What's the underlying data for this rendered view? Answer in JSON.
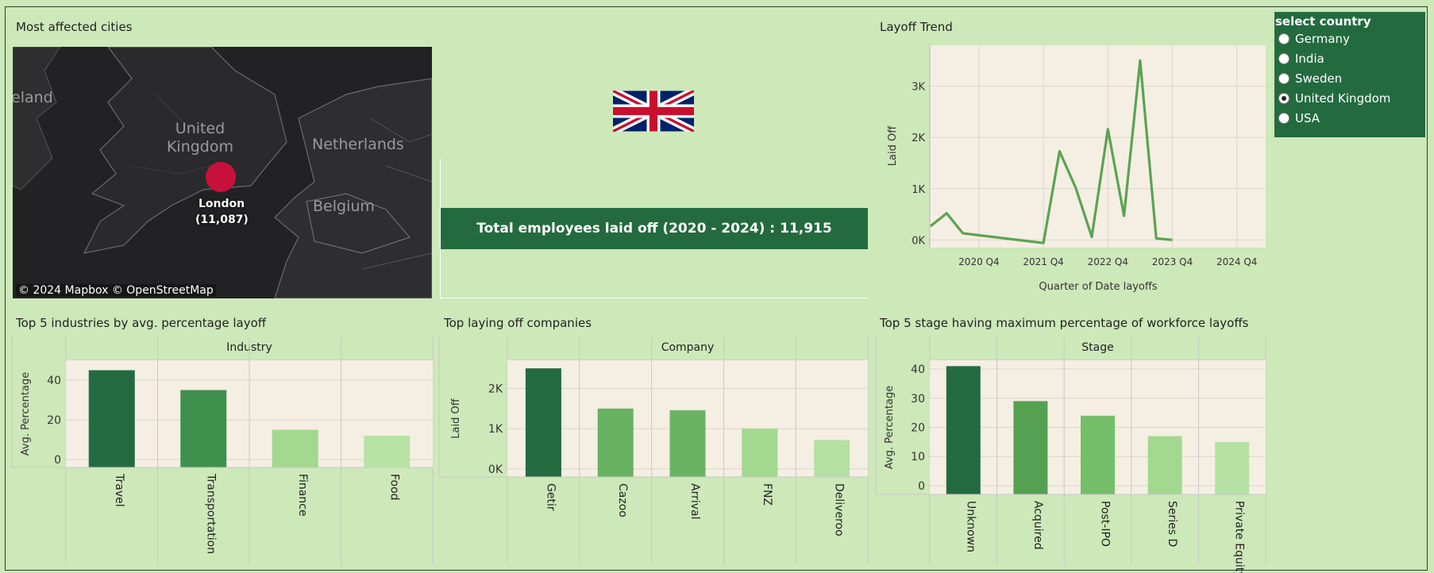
{
  "panels": {
    "map_title": "Most affected cities",
    "trend_title": "Layoff Trend",
    "industries_title": "Top 5 industries by avg. percentage layoff",
    "companies_title": "Top laying off companies",
    "stages_title": "Top 5 stage having maximum percentage of workforce layoffs"
  },
  "map": {
    "labels": {
      "ireland": "eland",
      "uk": "United Kingdom",
      "netherlands": "Netherlands",
      "belgium": "Belgium"
    },
    "city_name": "London",
    "city_value": "(11,087)",
    "attribution": "© 2024 Mapbox  © OpenStreetMap",
    "marker_color": "#c8103c"
  },
  "kpi": {
    "label": "Total employees laid off (2020 - 2024) :",
    "value": "11,915"
  },
  "selector": {
    "title": "select country",
    "options": [
      "Germany",
      "India",
      "Sweden",
      "United Kingdom",
      "USA"
    ],
    "selected": "United Kingdom"
  },
  "colors": {
    "plot_bg": "#f5eee3",
    "line": "#5aa352",
    "dark_green": "#236b3f"
  },
  "chart_data": [
    {
      "id": "trend",
      "type": "line",
      "title": "Layoff Trend",
      "xlabel": "Quarter of Date layoffs",
      "ylabel": "Laid Off",
      "x": [
        "2020 Q1",
        "2020 Q2",
        "2020 Q3",
        "2021 Q4",
        "2022 Q1",
        "2022 Q2",
        "2022 Q3",
        "2022 Q4",
        "2023 Q1",
        "2023 Q2",
        "2023 Q3",
        "2023 Q4"
      ],
      "values": [
        270,
        520,
        130,
        -60,
        1730,
        1020,
        60,
        2160,
        470,
        3500,
        30,
        0
      ],
      "xticks": [
        "2020 Q4",
        "2021 Q4",
        "2022 Q4",
        "2023 Q4",
        "2024 Q4"
      ],
      "yticks": [
        "0K",
        "1K",
        "2K",
        "3K"
      ],
      "ylim": [
        -150,
        3800
      ]
    },
    {
      "id": "industries",
      "type": "bar",
      "title": "Top 5 industries by avg. percentage layoff",
      "xlabel": "Industry",
      "ylabel": "Avg. Percentage",
      "categories": [
        "Travel",
        "Transportation",
        "Finance",
        "Food"
      ],
      "values": [
        45,
        35,
        15,
        12
      ],
      "colors": [
        "#236b3f",
        "#3f8f4d",
        "#a2d98e",
        "#b7e3a5"
      ],
      "yticks": [
        "0",
        "20",
        "40"
      ],
      "ylim": [
        -4,
        50
      ]
    },
    {
      "id": "companies",
      "type": "bar",
      "title": "Top laying off companies",
      "xlabel": "Company",
      "ylabel": "Laid Off",
      "categories": [
        "Getir",
        "Cazoo",
        "Arrival",
        "FNZ",
        "Deliveroo"
      ],
      "values": [
        2500,
        1500,
        1460,
        1000,
        720
      ],
      "colors": [
        "#236b3f",
        "#67b160",
        "#6ab363",
        "#a2d98e",
        "#b5e1a3"
      ],
      "yticks": [
        "0K",
        "1K",
        "2K"
      ],
      "ylim": [
        -200,
        2700
      ]
    },
    {
      "id": "stages",
      "type": "bar",
      "title": "Top 5 stage having maximum percentage of workforce layoffs",
      "xlabel": "Stage",
      "ylabel": "Avg. Percentage",
      "categories": [
        "Unknown",
        "Acquired",
        "Post-IPO",
        "Series D",
        "Private Equity ..."
      ],
      "values": [
        41,
        29,
        24,
        17,
        15
      ],
      "colors": [
        "#236b3f",
        "#55a151",
        "#74be69",
        "#a2d98e",
        "#b5e1a3"
      ],
      "yticks": [
        "0",
        "10",
        "20",
        "30",
        "40"
      ],
      "ylim": [
        -3,
        43
      ]
    }
  ]
}
